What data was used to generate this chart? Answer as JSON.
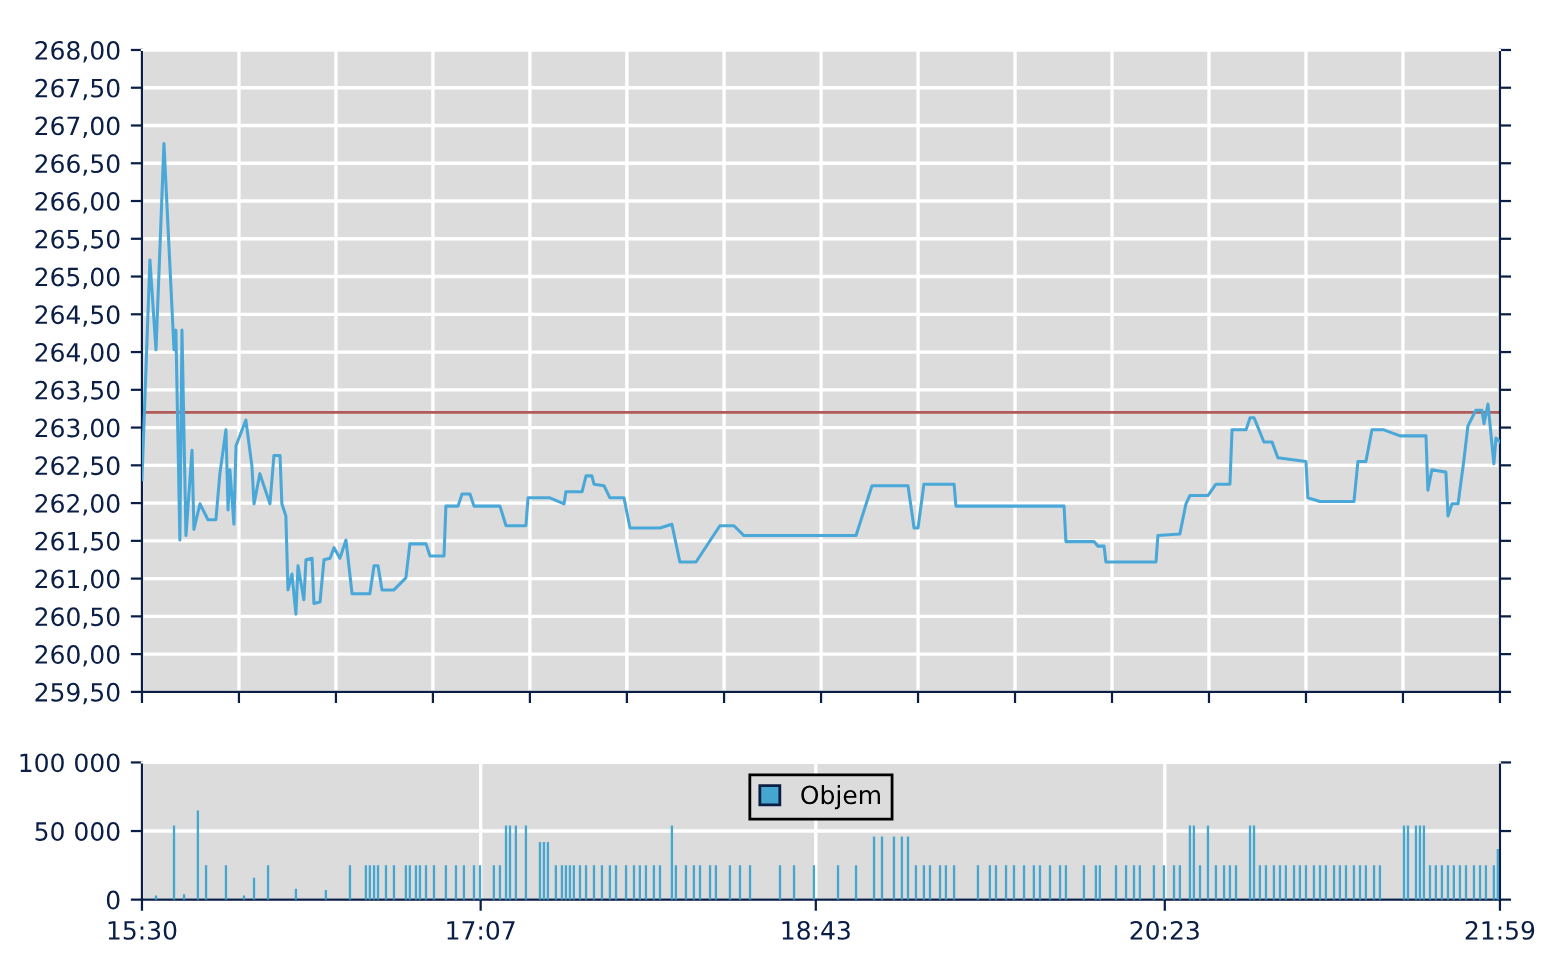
{
  "chart_data": [
    {
      "type": "line",
      "tick_labels": "y",
      "grid": true,
      "line_style": "solid",
      "marker": "none",
      "xlim": [
        15.5,
        21.983
      ],
      "xticks": [
        {
          "value": 15.5,
          "label": null
        },
        {
          "value": 15.963,
          "label": null
        },
        {
          "value": 16.426,
          "label": null
        },
        {
          "value": 16.889,
          "label": null
        },
        {
          "value": 17.352,
          "label": null
        },
        {
          "value": 17.815,
          "label": null
        },
        {
          "value": 18.279,
          "label": null
        },
        {
          "value": 18.742,
          "label": null
        },
        {
          "value": 19.205,
          "label": null
        },
        {
          "value": 19.668,
          "label": null
        },
        {
          "value": 20.131,
          "label": null
        },
        {
          "value": 20.594,
          "label": null
        },
        {
          "value": 21.057,
          "label": null
        },
        {
          "value": 21.52,
          "label": null
        },
        {
          "value": 21.983,
          "label": null
        }
      ],
      "ylim": [
        259.5,
        268
      ],
      "yticks": [
        {
          "value": 259.5,
          "label": "259,50"
        },
        {
          "value": 260,
          "label": "260,00"
        },
        {
          "value": 260.5,
          "label": "260,50"
        },
        {
          "value": 261,
          "label": "261,00"
        },
        {
          "value": 261.5,
          "label": "261,50"
        },
        {
          "value": 262,
          "label": "262,00"
        },
        {
          "value": 262.5,
          "label": "262,50"
        },
        {
          "value": 263,
          "label": "263,00"
        },
        {
          "value": 263.5,
          "label": "263,50"
        },
        {
          "value": 264,
          "label": "264,00"
        },
        {
          "value": 264.5,
          "label": "264,50"
        },
        {
          "value": 265,
          "label": "265,00"
        },
        {
          "value": 265.5,
          "label": "265,50"
        },
        {
          "value": 266,
          "label": "266,00"
        },
        {
          "value": 266.5,
          "label": "266,50"
        },
        {
          "value": 267,
          "label": "267,00"
        },
        {
          "value": 267.5,
          "label": "267,50"
        },
        {
          "value": 268,
          "label": "268,00"
        }
      ],
      "ref_lines": [
        {
          "axis": "y",
          "value": 263.2,
          "label": null,
          "color": "#b05a5a"
        }
      ],
      "series": [
        {
          "color": "#4aa8d8",
          "x": [
            15.5,
            15.538,
            15.567,
            15.605,
            15.653,
            15.662,
            15.681,
            15.691,
            15.71,
            15.739,
            15.748,
            15.777,
            15.815,
            15.853,
            15.872,
            15.901,
            15.911,
            15.92,
            15.939,
            15.949,
            15.996,
            16.025,
            16.035,
            16.063,
            16.082,
            16.111,
            16.13,
            16.159,
            16.168,
            16.187,
            16.197,
            16.216,
            16.235,
            16.245,
            16.273,
            16.283,
            16.312,
            16.321,
            16.35,
            16.369,
            16.398,
            16.417,
            16.445,
            16.474,
            16.503,
            16.588,
            16.608,
            16.627,
            16.646,
            16.703,
            16.76,
            16.779,
            16.856,
            16.875,
            16.942,
            16.951,
            17.009,
            17.028,
            17.066,
            17.085,
            17.209,
            17.238,
            17.333,
            17.343,
            17.448,
            17.515,
            17.524,
            17.601,
            17.62,
            17.648,
            17.658,
            17.706,
            17.734,
            17.801,
            17.83,
            17.973,
            18.03,
            18.068,
            18.145,
            18.259,
            18.326,
            18.374,
            18.909,
            18.985,
            19.157,
            19.186,
            19.205,
            19.233,
            19.377,
            19.386,
            19.902,
            19.911,
            20.045,
            20.064,
            20.093,
            20.102,
            20.341,
            20.35,
            20.455,
            20.484,
            20.503,
            20.589,
            20.627,
            20.694,
            20.704,
            20.771,
            20.79,
            20.809,
            20.856,
            20.895,
            20.923,
            21.057,
            21.066,
            21.124,
            21.286,
            21.305,
            21.343,
            21.372,
            21.429,
            21.506,
            21.63,
            21.639,
            21.658,
            21.725,
            21.735,
            21.754,
            21.783,
            21.811,
            21.83,
            21.868,
            21.897,
            21.907,
            21.926,
            21.954,
            21.964,
            21.983
          ],
          "values": [
            262.31,
            265.22,
            264.03,
            266.76,
            264.03,
            264.29,
            261.51,
            264.29,
            261.57,
            262.7,
            261.65,
            261.99,
            261.78,
            261.78,
            262.39,
            262.97,
            261.91,
            262.44,
            261.72,
            262.76,
            263.1,
            262.49,
            261.99,
            262.39,
            262.23,
            261.99,
            262.63,
            262.63,
            261.99,
            261.83,
            260.85,
            261.06,
            260.53,
            261.17,
            260.72,
            261.25,
            261.27,
            260.67,
            260.69,
            261.25,
            261.27,
            261.41,
            261.27,
            261.51,
            260.8,
            260.8,
            261.17,
            261.17,
            260.85,
            260.85,
            261.01,
            261.46,
            261.46,
            261.3,
            261.3,
            261.96,
            261.96,
            262.12,
            262.12,
            261.96,
            261.96,
            261.7,
            261.7,
            262.07,
            262.07,
            261.99,
            262.15,
            262.15,
            262.36,
            262.36,
            262.25,
            262.23,
            262.07,
            262.07,
            261.67,
            261.67,
            261.72,
            261.22,
            261.22,
            261.7,
            261.7,
            261.57,
            261.57,
            262.23,
            262.23,
            261.67,
            261.67,
            262.25,
            262.25,
            261.96,
            261.96,
            261.49,
            261.49,
            261.43,
            261.43,
            261.22,
            261.22,
            261.57,
            261.59,
            261.99,
            262.1,
            262.1,
            262.25,
            262.25,
            262.97,
            262.97,
            263.13,
            263.13,
            262.81,
            262.81,
            262.6,
            262.55,
            262.07,
            262.02,
            262.02,
            262.55,
            262.55,
            262.97,
            262.97,
            262.89,
            262.89,
            262.17,
            262.44,
            262.41,
            261.83,
            261.99,
            261.99,
            262.57,
            263.02,
            263.23,
            263.23,
            263.05,
            263.31,
            262.52,
            262.86,
            262.81
          ]
        }
      ]
    },
    {
      "type": "bar",
      "grid": true,
      "legend": "top",
      "xlim": [
        15.5,
        21.983
      ],
      "xticks": [
        {
          "value": 15.5,
          "label": "15:30"
        },
        {
          "value": 17.117,
          "label": "17:07"
        },
        {
          "value": 18.717,
          "label": "18:43"
        },
        {
          "value": 20.383,
          "label": "20:23"
        },
        {
          "value": 21.983,
          "label": "21:59"
        }
      ],
      "ylim": [
        0,
        100000
      ],
      "yticks": [
        0,
        {
          "value": 50000,
          "label": "50 000"
        },
        {
          "value": 100000,
          "label": "100 000"
        }
      ],
      "series": [
        {
          "name": "Objem",
          "color": "#45a6d0",
          "x": [
            15.567,
            15.653,
            15.701,
            15.767,
            15.806,
            15.901,
            15.987,
            16.035,
            16.102,
            16.235,
            16.378,
            16.493,
            16.569,
            16.588,
            16.608,
            16.627,
            16.665,
            16.703,
            16.76,
            16.779,
            16.808,
            16.827,
            16.856,
            16.894,
            16.951,
            16.999,
            17.037,
            17.085,
            17.114,
            17.18,
            17.209,
            17.238,
            17.257,
            17.285,
            17.333,
            17.4,
            17.419,
            17.438,
            17.476,
            17.505,
            17.524,
            17.543,
            17.562,
            17.591,
            17.62,
            17.658,
            17.696,
            17.734,
            17.763,
            17.811,
            17.849,
            17.877,
            17.906,
            17.944,
            17.973,
            18.03,
            18.049,
            18.097,
            18.135,
            18.164,
            18.212,
            18.24,
            18.307,
            18.355,
            18.403,
            18.546,
            18.613,
            18.708,
            18.823,
            18.909,
            18.995,
            19.033,
            19.09,
            19.128,
            19.157,
            19.195,
            19.233,
            19.262,
            19.31,
            19.338,
            19.377,
            19.491,
            19.548,
            19.577,
            19.625,
            19.663,
            19.711,
            19.758,
            19.787,
            19.835,
            19.883,
            19.911,
            19.997,
            20.054,
            20.073,
            20.15,
            20.198,
            20.236,
            20.264,
            20.331,
            20.379,
            20.427,
            20.455,
            20.503,
            20.522,
            20.551,
            20.589,
            20.627,
            20.666,
            20.694,
            20.723,
            20.79,
            20.809,
            20.837,
            20.866,
            20.904,
            20.933,
            20.961,
            21.0,
            21.028,
            21.057,
            21.095,
            21.124,
            21.152,
            21.191,
            21.219,
            21.248,
            21.286,
            21.315,
            21.343,
            21.382,
            21.41,
            21.525,
            21.544,
            21.582,
            21.601,
            21.62,
            21.649,
            21.677,
            21.706,
            21.735,
            21.763,
            21.792,
            21.821,
            21.859,
            21.888,
            21.916,
            21.954,
            21.973
          ],
          "values": [
            3000,
            54000,
            4000,
            65000,
            25000,
            25000,
            3000,
            16000,
            25000,
            8000,
            7000,
            25000,
            25000,
            25000,
            25000,
            25000,
            25000,
            25000,
            25000,
            25000,
            25000,
            25000,
            25000,
            25000,
            25000,
            25000,
            25000,
            25000,
            25000,
            25000,
            25000,
            54000,
            54000,
            54000,
            54000,
            42000,
            42000,
            42000,
            25000,
            25000,
            25000,
            25000,
            25000,
            25000,
            25000,
            25000,
            25000,
            25000,
            25000,
            25000,
            25000,
            25000,
            25000,
            25000,
            25000,
            54000,
            25000,
            25000,
            25000,
            25000,
            25000,
            25000,
            25000,
            25000,
            25000,
            25000,
            25000,
            25000,
            25000,
            25000,
            46000,
            46000,
            46000,
            46000,
            46000,
            25000,
            25000,
            25000,
            25000,
            25000,
            25000,
            25000,
            25000,
            25000,
            25000,
            25000,
            25000,
            25000,
            25000,
            25000,
            25000,
            25000,
            25000,
            25000,
            25000,
            25000,
            25000,
            25000,
            25000,
            25000,
            25000,
            25000,
            25000,
            54000,
            54000,
            25000,
            54000,
            25000,
            25000,
            25000,
            25000,
            54000,
            54000,
            25000,
            25000,
            25000,
            25000,
            25000,
            25000,
            25000,
            25000,
            25000,
            25000,
            25000,
            25000,
            25000,
            25000,
            25000,
            25000,
            25000,
            25000,
            25000,
            54000,
            54000,
            54000,
            54000,
            54000,
            25000,
            25000,
            25000,
            25000,
            25000,
            25000,
            25000,
            25000,
            25000,
            25000,
            25000,
            37000
          ]
        }
      ]
    }
  ]
}
